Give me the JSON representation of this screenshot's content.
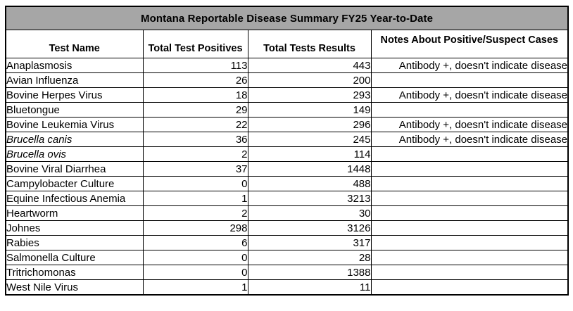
{
  "page": {
    "background_color": "#ffffff"
  },
  "table": {
    "title": "Montana Reportable Disease Summary FY25 Year-to-Date",
    "title_bg_color": "#a6a6a6",
    "border_color": "#000000",
    "columns": [
      "Test Name",
      "Total Test Positives",
      "Total Tests Results",
      "Notes About Positive/Suspect Cases"
    ],
    "rows": [
      {
        "test_name": "Anaplasmosis",
        "italic": false,
        "total_test_positives": "113",
        "total_tests_results": "443",
        "note": "Antibody +, doesn't indicate disease"
      },
      {
        "test_name": "Avian Influenza",
        "italic": false,
        "total_test_positives": "26",
        "total_tests_results": "200",
        "note": ""
      },
      {
        "test_name": "Bovine Herpes Virus",
        "italic": false,
        "total_test_positives": "18",
        "total_tests_results": "293",
        "note": "Antibody +, doesn't indicate disease"
      },
      {
        "test_name": "Bluetongue",
        "italic": false,
        "total_test_positives": "29",
        "total_tests_results": "149",
        "note": ""
      },
      {
        "test_name": "Bovine Leukemia Virus",
        "italic": false,
        "total_test_positives": "22",
        "total_tests_results": "296",
        "note": "Antibody +, doesn't indicate disease"
      },
      {
        "test_name": "Brucella canis",
        "italic": true,
        "total_test_positives": "36",
        "total_tests_results": "245",
        "note": "Antibody +, doesn't indicate disease"
      },
      {
        "test_name": "Brucella ovis",
        "italic": true,
        "total_test_positives": "2",
        "total_tests_results": "114",
        "note": ""
      },
      {
        "test_name": "Bovine Viral Diarrhea",
        "italic": false,
        "total_test_positives": "37",
        "total_tests_results": "1448",
        "note": ""
      },
      {
        "test_name": "Campylobacter Culture",
        "italic": false,
        "total_test_positives": "0",
        "total_tests_results": "488",
        "note": ""
      },
      {
        "test_name": "Equine Infectious Anemia",
        "italic": false,
        "total_test_positives": "1",
        "total_tests_results": "3213",
        "note": ""
      },
      {
        "test_name": "Heartworm",
        "italic": false,
        "total_test_positives": "2",
        "total_tests_results": "30",
        "note": ""
      },
      {
        "test_name": "Johnes",
        "italic": false,
        "total_test_positives": "298",
        "total_tests_results": "3126",
        "note": ""
      },
      {
        "test_name": "Rabies",
        "italic": false,
        "total_test_positives": "6",
        "total_tests_results": "317",
        "note": ""
      },
      {
        "test_name": "Salmonella Culture",
        "italic": false,
        "total_test_positives": "0",
        "total_tests_results": "28",
        "note": ""
      },
      {
        "test_name": "Tritrichomonas",
        "italic": false,
        "total_test_positives": "0",
        "total_tests_results": "1388",
        "note": ""
      },
      {
        "test_name": "West Nile Virus",
        "italic": false,
        "total_test_positives": "1",
        "total_tests_results": "11",
        "note": ""
      }
    ]
  }
}
